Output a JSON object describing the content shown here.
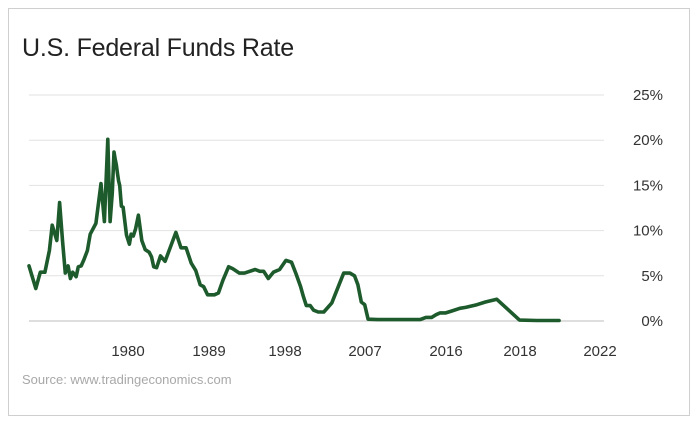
{
  "chart_data": {
    "type": "line",
    "title": "U.S. Federal Funds Rate",
    "source": "Source: www.tradingeconomics.com",
    "x_tick_labels": [
      "1980",
      "1989",
      "1998",
      "2007",
      "2016",
      "2018",
      "2022"
    ],
    "y_tick_labels": [
      "0%",
      "5%",
      "10%",
      "15%",
      "20%",
      "25%"
    ],
    "y_ticks": [
      0,
      5,
      10,
      15,
      20,
      25
    ],
    "ylim": [
      0,
      25
    ],
    "xlim": [
      0,
      100
    ],
    "grid": true,
    "line_color": "#1e5b2c",
    "series": [
      {
        "name": "Federal Funds Rate",
        "x": [
          0.0,
          1.2,
          2.0,
          2.8,
          3.6,
          4.1,
          4.9,
          5.4,
          5.9,
          6.4,
          6.9,
          7.3,
          7.7,
          8.3,
          8.7,
          9.2,
          9.7,
          10.3,
          10.8,
          11.8,
          12.7,
          13.3,
          13.9,
          14.3,
          14.7,
          15.0,
          15.2,
          15.4,
          15.6,
          15.8,
          16.0,
          16.3,
          16.6,
          17.2,
          17.7,
          18.0,
          18.4,
          18.8,
          19.3,
          19.9,
          20.5,
          21.2,
          21.6,
          22.0,
          22.5,
          23.2,
          24.0,
          25.0,
          25.9,
          26.8,
          27.7,
          28.6,
          29.4,
          30.2,
          30.8,
          31.5,
          32.1,
          32.7,
          33.4,
          34.2,
          35.2,
          35.9,
          37.1,
          38.0,
          39.9,
          40.7,
          41.4,
          42.2,
          43.1,
          44.2,
          45.3,
          46.3,
          47.1,
          47.9,
          48.4,
          48.9,
          49.6,
          50.2,
          51.0,
          52.0,
          53.4,
          55.5,
          56.6,
          57.4,
          58.0,
          58.6,
          59.2,
          59.8,
          61.5,
          69.0,
          70.0,
          71.0,
          71.8,
          72.5,
          73.5,
          74.5,
          76.0,
          77.0,
          79.0,
          80.5,
          82.5,
          86.5,
          89.5,
          91.0,
          93.5
        ],
        "values": [
          6.1,
          3.6,
          5.4,
          5.4,
          7.8,
          10.6,
          8.9,
          13.1,
          8.9,
          5.3,
          6.1,
          4.7,
          5.4,
          4.9,
          6.0,
          6.1,
          6.8,
          7.8,
          9.6,
          10.8,
          15.2,
          11.0,
          20.1,
          11.0,
          14.2,
          18.7,
          17.9,
          17.3,
          16.3,
          15.5,
          15.0,
          12.7,
          12.6,
          9.5,
          8.5,
          9.6,
          9.4,
          10.2,
          11.7,
          8.9,
          7.9,
          7.6,
          7.1,
          6.0,
          5.9,
          7.2,
          6.6,
          8.3,
          9.8,
          8.1,
          8.1,
          6.4,
          5.6,
          4.0,
          3.8,
          2.9,
          2.9,
          2.9,
          3.1,
          4.5,
          6.0,
          5.8,
          5.3,
          5.3,
          5.7,
          5.5,
          5.5,
          4.7,
          5.4,
          5.7,
          6.7,
          6.5,
          5.2,
          3.8,
          2.7,
          1.7,
          1.7,
          1.2,
          1.0,
          1.0,
          2.0,
          5.3,
          5.3,
          5.0,
          4.0,
          2.1,
          1.8,
          0.2,
          0.15,
          0.15,
          0.4,
          0.4,
          0.7,
          0.9,
          0.9,
          1.1,
          1.4,
          1.5,
          1.8,
          2.1,
          2.4,
          0.1,
          0.05,
          0.05,
          0.05
        ]
      }
    ]
  }
}
